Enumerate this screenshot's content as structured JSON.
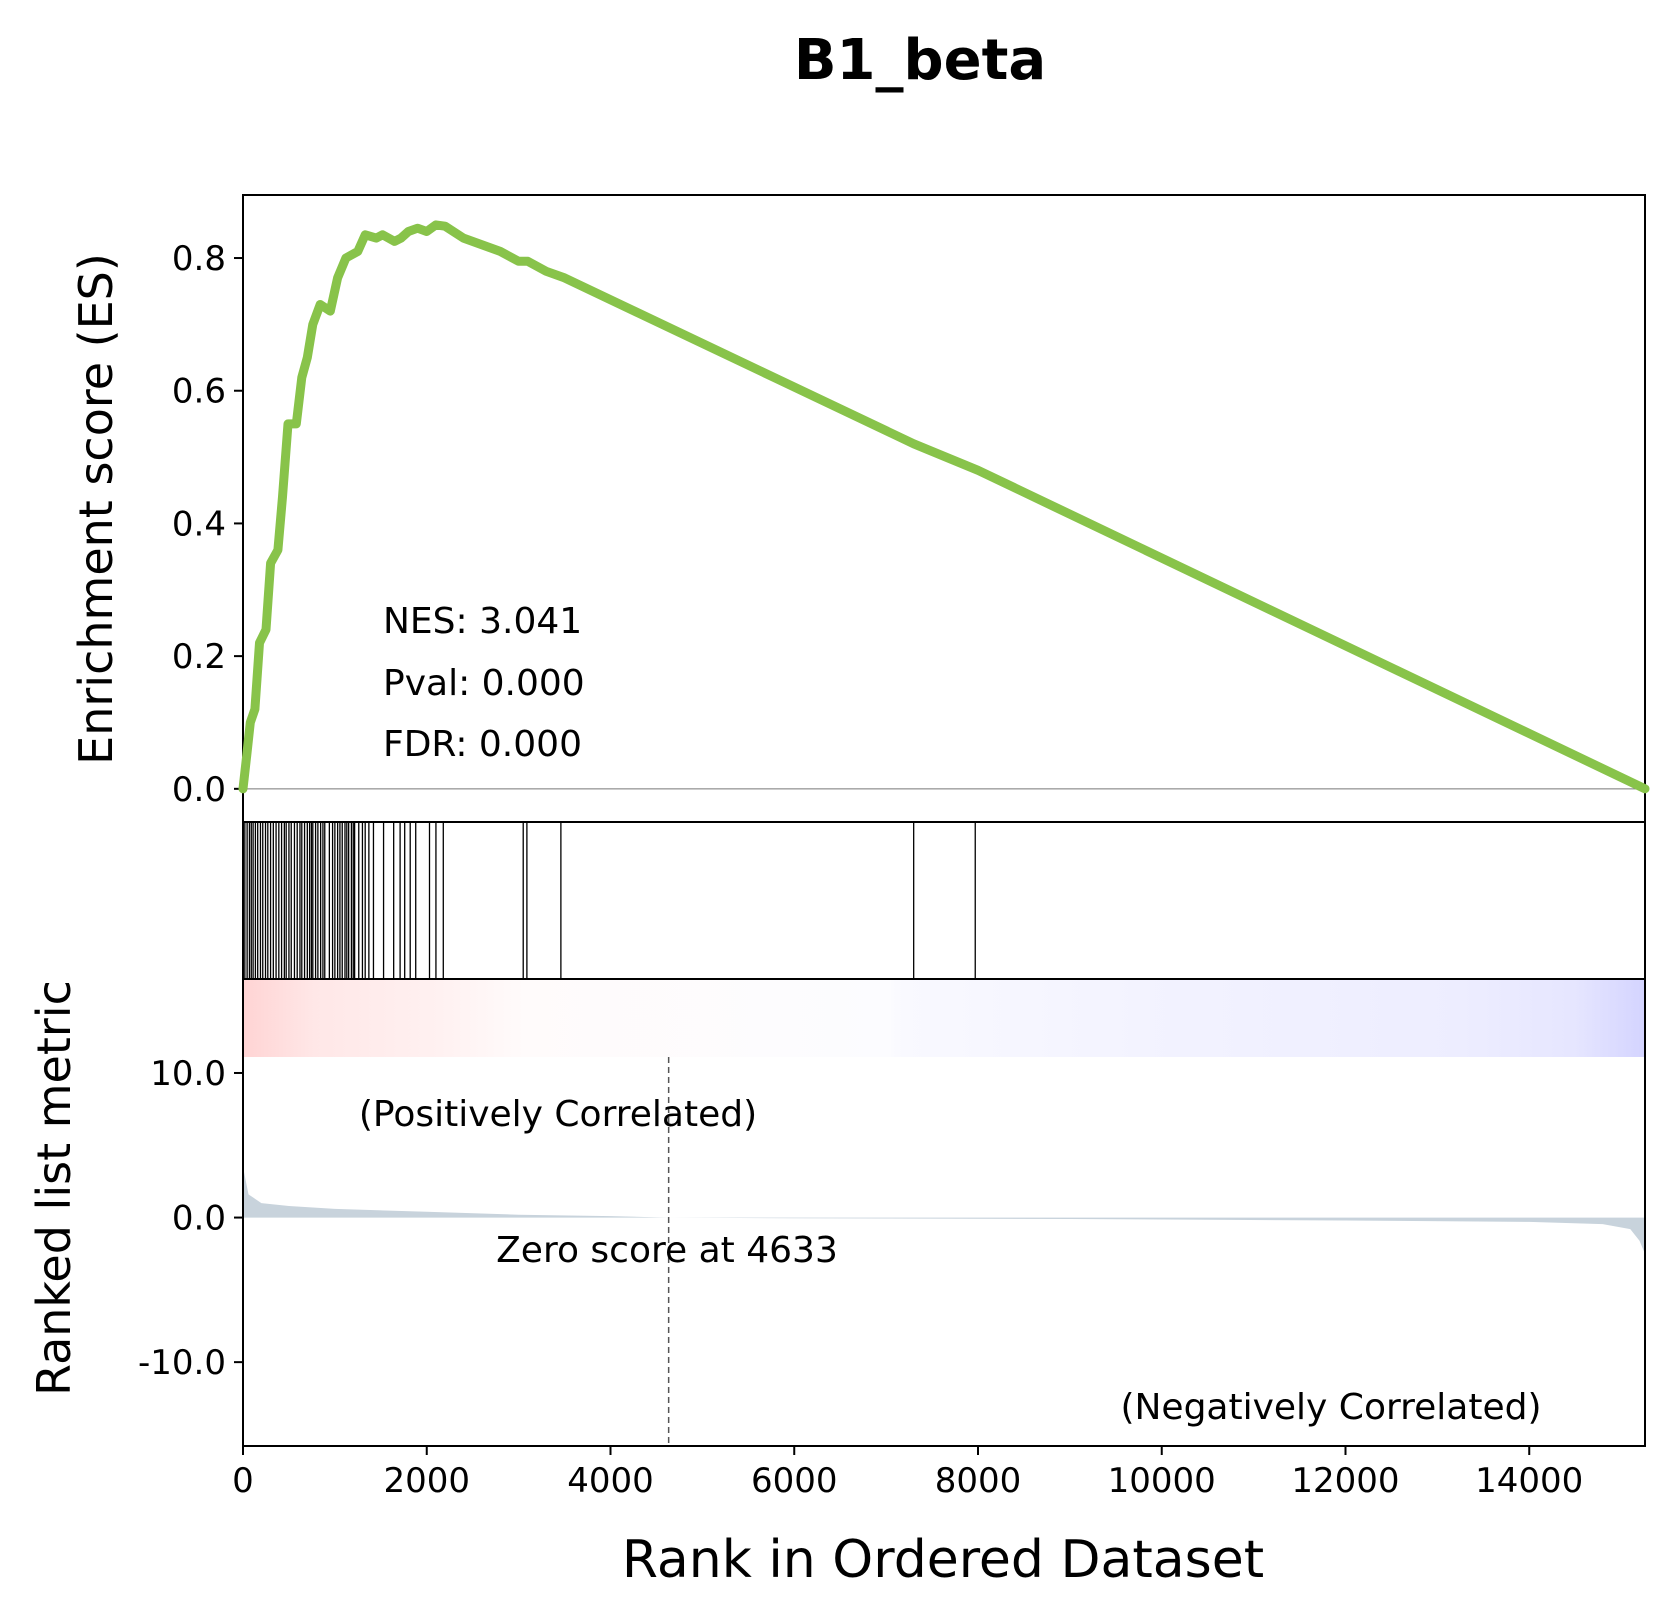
{
  "chart_data": {
    "type": "line",
    "title": "B1_beta",
    "xlabel": "Rank in Ordered Dataset",
    "xlim": [
      0,
      15260
    ],
    "xticks": [
      0,
      2000,
      4000,
      6000,
      8000,
      10000,
      12000,
      14000
    ],
    "es_panel": {
      "ylabel": "Enrichment score (ES)",
      "ylim": [
        -0.05,
        0.895
      ],
      "yticks": [
        0.0,
        0.2,
        0.4,
        0.6,
        0.8
      ],
      "ytick_labels": [
        "0.0",
        "0.2",
        "0.4",
        "0.6",
        "0.8"
      ],
      "line_color": "#88c34a",
      "es_curve": [
        [
          0,
          0
        ],
        [
          40,
          0.05
        ],
        [
          80,
          0.1
        ],
        [
          130,
          0.12
        ],
        [
          180,
          0.22
        ],
        [
          250,
          0.24
        ],
        [
          300,
          0.34
        ],
        [
          380,
          0.36
        ],
        [
          430,
          0.44
        ],
        [
          490,
          0.55
        ],
        [
          580,
          0.55
        ],
        [
          640,
          0.62
        ],
        [
          700,
          0.65
        ],
        [
          760,
          0.7
        ],
        [
          840,
          0.73
        ],
        [
          950,
          0.72
        ],
        [
          1030,
          0.77
        ],
        [
          1120,
          0.8
        ],
        [
          1250,
          0.81
        ],
        [
          1330,
          0.835
        ],
        [
          1450,
          0.83
        ],
        [
          1520,
          0.835
        ],
        [
          1650,
          0.825
        ],
        [
          1720,
          0.83
        ],
        [
          1800,
          0.84
        ],
        [
          1900,
          0.845
        ],
        [
          2000,
          0.84
        ],
        [
          2100,
          0.85
        ],
        [
          2200,
          0.848
        ],
        [
          2400,
          0.83
        ],
        [
          2800,
          0.81
        ],
        [
          3000,
          0.795
        ],
        [
          3100,
          0.795
        ],
        [
          3300,
          0.78
        ],
        [
          3500,
          0.77
        ],
        [
          7300,
          0.52
        ],
        [
          8000,
          0.48
        ],
        [
          15260,
          0
        ]
      ],
      "stats": [
        "NES: 3.041",
        "Pval: 0.000",
        "FDR: 0.000"
      ]
    },
    "hits": [
      20,
      45,
      70,
      90,
      110,
      135,
      160,
      190,
      215,
      245,
      270,
      300,
      330,
      360,
      390,
      420,
      450,
      470,
      500,
      525,
      560,
      590,
      620,
      640,
      670,
      700,
      725,
      745,
      760,
      790,
      815,
      845,
      870,
      890,
      940,
      975,
      1000,
      1030,
      1055,
      1080,
      1110,
      1130,
      1150,
      1180,
      1200,
      1215,
      1260,
      1300,
      1330,
      1370,
      1420,
      1530,
      1640,
      1710,
      1760,
      1820,
      1880,
      2030,
      2100,
      2180,
      3050,
      3090,
      3460,
      7300,
      7970
    ],
    "metric_panel": {
      "ylabel": "Ranked list metric",
      "ylim": [
        -15.8,
        16.5
      ],
      "yticks": [
        10.0,
        0.0,
        -10.0
      ],
      "ytick_labels": [
        "10.0",
        "0.0",
        "-10.0"
      ],
      "fill_color": "#c8d3dc",
      "zero_cross": 4633,
      "zero_label": "Zero score at 4633",
      "pos_label": "(Positively Correlated)",
      "neg_label": "(Negatively Correlated)",
      "pos_color": "#ff0000",
      "neg_color": "#0000ff",
      "metric_curve": [
        [
          0,
          3.5
        ],
        [
          60,
          1.6
        ],
        [
          200,
          1.0
        ],
        [
          500,
          0.8
        ],
        [
          1000,
          0.6
        ],
        [
          2000,
          0.4
        ],
        [
          3000,
          0.2
        ],
        [
          4000,
          0.1
        ],
        [
          4633,
          0
        ],
        [
          6000,
          -0.05
        ],
        [
          9000,
          -0.1
        ],
        [
          12000,
          -0.2
        ],
        [
          14000,
          -0.3
        ],
        [
          14800,
          -0.45
        ],
        [
          15100,
          -0.8
        ],
        [
          15200,
          -1.6
        ],
        [
          15260,
          -2.5
        ]
      ]
    }
  }
}
